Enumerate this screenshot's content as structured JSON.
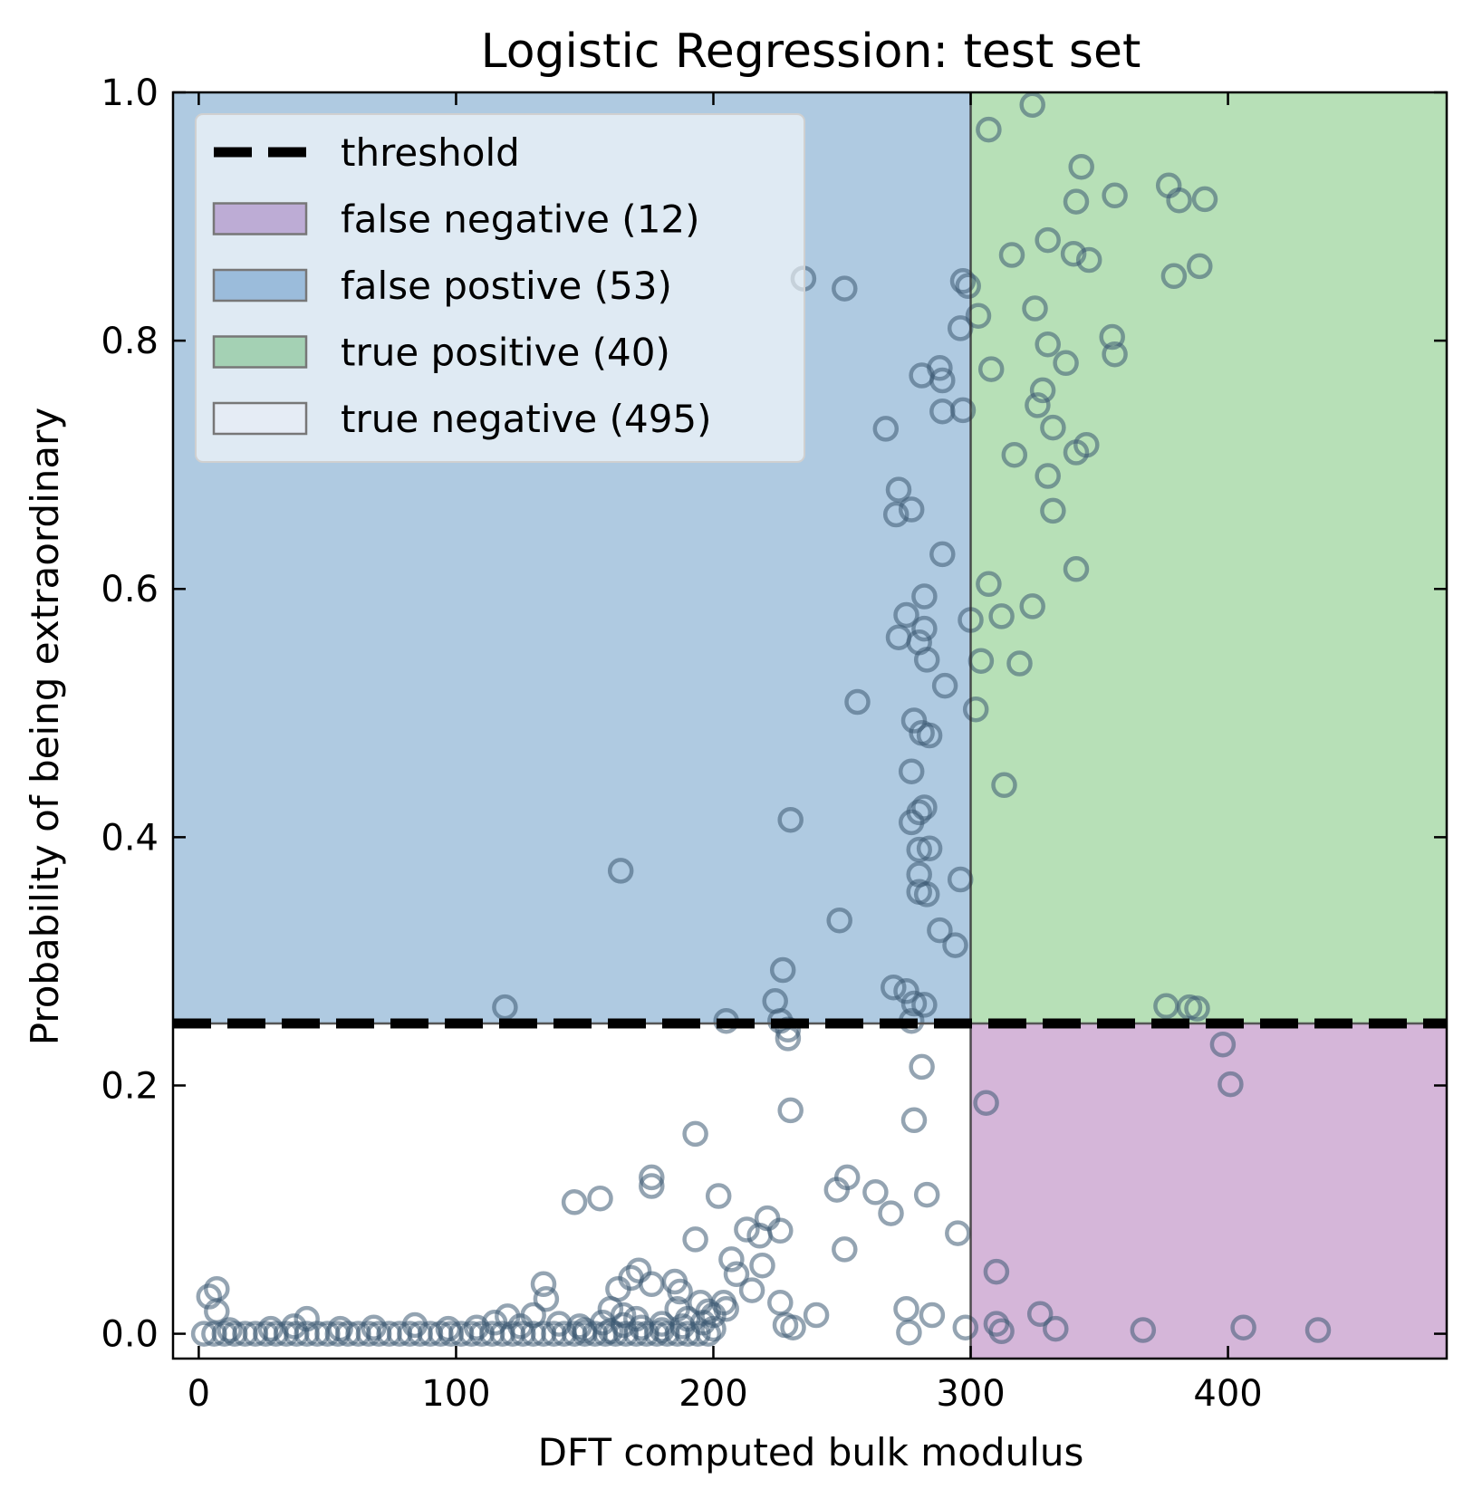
{
  "chart_data": {
    "type": "scatter",
    "title": "Logistic Regression: test set",
    "xlabel": "DFT computed bulk modulus",
    "ylabel": "Probability of being extraordinary",
    "xlim": [
      -10,
      485
    ],
    "ylim": [
      -0.02,
      1.0
    ],
    "x_ticks": [
      0,
      100,
      200,
      300,
      400
    ],
    "x_tick_labels": [
      "0",
      "100",
      "200",
      "300",
      "400"
    ],
    "y_ticks": [
      0.0,
      0.2,
      0.4,
      0.6,
      0.8,
      1.0
    ],
    "y_tick_labels": [
      "0.0",
      "0.2",
      "0.4",
      "0.6",
      "0.8",
      "1.0"
    ],
    "grid": false,
    "legend_position": "top-left",
    "threshold": {
      "x": 300,
      "y": 0.25
    },
    "colors": {
      "false_negative": "#d5b6d9",
      "false_positive": "#afcae1",
      "true_positive": "#b7e0b7",
      "true_negative": "#ffffff",
      "points": "#3d5a73",
      "threshold_line": "#000000"
    },
    "legend": [
      {
        "label": "threshold",
        "kind": "dashed-line",
        "color": "#000000"
      },
      {
        "label": "false negative (12)",
        "kind": "patch",
        "color": "#b7a1cf"
      },
      {
        "label": "false postive (53)",
        "kind": "patch",
        "color": "#8fb4d6"
      },
      {
        "label": "true positive (40)",
        "kind": "patch",
        "color": "#9acda8"
      },
      {
        "label": "true negative (495)",
        "kind": "patch",
        "color": "#e6ecf4"
      }
    ],
    "points": [
      [
        324,
        0.99
      ],
      [
        307,
        0.97
      ],
      [
        343,
        0.94
      ],
      [
        377,
        0.925
      ],
      [
        341,
        0.912
      ],
      [
        356,
        0.917
      ],
      [
        381,
        0.913
      ],
      [
        391,
        0.914
      ],
      [
        316,
        0.869
      ],
      [
        340,
        0.87
      ],
      [
        346,
        0.865
      ],
      [
        389,
        0.86
      ],
      [
        330,
        0.881
      ],
      [
        379,
        0.852
      ],
      [
        235,
        0.85
      ],
      [
        251,
        0.842
      ],
      [
        297,
        0.848
      ],
      [
        299,
        0.844
      ],
      [
        303,
        0.82
      ],
      [
        325,
        0.826
      ],
      [
        296,
        0.81
      ],
      [
        355,
        0.803
      ],
      [
        330,
        0.797
      ],
      [
        356,
        0.789
      ],
      [
        337,
        0.782
      ],
      [
        308,
        0.777
      ],
      [
        281,
        0.772
      ],
      [
        288,
        0.778
      ],
      [
        289,
        0.768
      ],
      [
        328,
        0.76
      ],
      [
        289,
        0.743
      ],
      [
        297,
        0.744
      ],
      [
        326,
        0.748
      ],
      [
        332,
        0.73
      ],
      [
        267,
        0.729
      ],
      [
        317,
        0.708
      ],
      [
        341,
        0.71
      ],
      [
        345,
        0.716
      ],
      [
        272,
        0.68
      ],
      [
        330,
        0.691
      ],
      [
        271,
        0.66
      ],
      [
        277,
        0.664
      ],
      [
        332,
        0.663
      ],
      [
        289,
        0.628
      ],
      [
        341,
        0.616
      ],
      [
        307,
        0.604
      ],
      [
        324,
        0.586
      ],
      [
        282,
        0.594
      ],
      [
        275,
        0.579
      ],
      [
        300,
        0.575
      ],
      [
        312,
        0.578
      ],
      [
        272,
        0.561
      ],
      [
        280,
        0.557
      ],
      [
        282,
        0.568
      ],
      [
        283,
        0.543
      ],
      [
        304,
        0.542
      ],
      [
        319,
        0.54
      ],
      [
        290,
        0.522
      ],
      [
        256,
        0.509
      ],
      [
        302,
        0.503
      ],
      [
        278,
        0.494
      ],
      [
        281,
        0.484
      ],
      [
        284,
        0.482
      ],
      [
        277,
        0.453
      ],
      [
        313,
        0.442
      ],
      [
        280,
        0.42
      ],
      [
        282,
        0.424
      ],
      [
        277,
        0.412
      ],
      [
        230,
        0.414
      ],
      [
        280,
        0.39
      ],
      [
        284,
        0.391
      ],
      [
        164,
        0.373
      ],
      [
        280,
        0.37
      ],
      [
        296,
        0.366
      ],
      [
        280,
        0.356
      ],
      [
        283,
        0.354
      ],
      [
        249,
        0.333
      ],
      [
        288,
        0.325
      ],
      [
        294,
        0.313
      ],
      [
        227,
        0.293
      ],
      [
        270,
        0.279
      ],
      [
        275,
        0.276
      ],
      [
        278,
        0.266
      ],
      [
        224,
        0.268
      ],
      [
        282,
        0.265
      ],
      [
        119,
        0.263
      ],
      [
        376,
        0.264
      ],
      [
        385,
        0.263
      ],
      [
        388,
        0.262
      ],
      [
        205,
        0.252
      ],
      [
        226,
        0.252
      ],
      [
        277,
        0.252
      ],
      [
        229,
        0.245
      ],
      [
        229,
        0.238
      ],
      [
        398,
        0.233
      ],
      [
        281,
        0.215
      ],
      [
        401,
        0.201
      ],
      [
        306,
        0.186
      ],
      [
        230,
        0.18
      ],
      [
        278,
        0.172
      ],
      [
        193,
        0.161
      ],
      [
        176,
        0.126
      ],
      [
        252,
        0.126
      ],
      [
        248,
        0.116
      ],
      [
        176,
        0.119
      ],
      [
        263,
        0.114
      ],
      [
        283,
        0.112
      ],
      [
        202,
        0.111
      ],
      [
        146,
        0.106
      ],
      [
        156,
        0.109
      ],
      [
        269,
        0.097
      ],
      [
        221,
        0.093
      ],
      [
        213,
        0.084
      ],
      [
        226,
        0.083
      ],
      [
        295,
        0.081
      ],
      [
        218,
        0.079
      ],
      [
        193,
        0.076
      ],
      [
        251,
        0.068
      ],
      [
        207,
        0.06
      ],
      [
        219,
        0.055
      ],
      [
        171,
        0.051
      ],
      [
        310,
        0.05
      ],
      [
        209,
        0.048
      ],
      [
        163,
        0.036
      ],
      [
        168,
        0.045
      ],
      [
        134,
        0.04
      ],
      [
        185,
        0.042
      ],
      [
        215,
        0.035
      ],
      [
        187,
        0.034
      ],
      [
        7,
        0.036
      ],
      [
        4,
        0.03
      ],
      [
        135,
        0.028
      ],
      [
        176,
        0.04
      ],
      [
        195,
        0.025
      ],
      [
        7,
        0.018
      ],
      [
        42,
        0.012
      ],
      [
        120,
        0.014
      ],
      [
        130,
        0.015
      ],
      [
        275,
        0.02
      ],
      [
        285,
        0.015
      ],
      [
        327,
        0.016
      ],
      [
        240,
        0.015
      ],
      [
        226,
        0.025
      ],
      [
        160,
        0.02
      ],
      [
        228,
        0.007
      ],
      [
        231,
        0.005
      ],
      [
        298,
        0.005
      ],
      [
        310,
        0.008
      ],
      [
        312,
        0.002
      ],
      [
        333,
        0.004
      ],
      [
        367,
        0.003
      ],
      [
        406,
        0.005
      ],
      [
        435,
        0.003
      ],
      [
        276,
        0.001
      ],
      [
        2,
        0.0
      ],
      [
        6,
        0.0
      ],
      [
        10,
        0.0
      ],
      [
        14,
        0.0
      ],
      [
        18,
        0.0
      ],
      [
        22,
        0.0
      ],
      [
        26,
        0.0
      ],
      [
        30,
        0.0
      ],
      [
        34,
        0.0
      ],
      [
        38,
        0.0
      ],
      [
        42,
        0.0
      ],
      [
        46,
        0.0
      ],
      [
        50,
        0.0
      ],
      [
        54,
        0.0
      ],
      [
        58,
        0.0
      ],
      [
        62,
        0.0
      ],
      [
        66,
        0.0
      ],
      [
        70,
        0.0
      ],
      [
        74,
        0.0
      ],
      [
        78,
        0.0
      ],
      [
        82,
        0.0
      ],
      [
        86,
        0.0
      ],
      [
        90,
        0.0
      ],
      [
        94,
        0.0
      ],
      [
        98,
        0.0
      ],
      [
        102,
        0.0
      ],
      [
        106,
        0.0
      ],
      [
        110,
        0.0
      ],
      [
        114,
        0.0
      ],
      [
        118,
        0.0
      ],
      [
        122,
        0.0
      ],
      [
        126,
        0.0
      ],
      [
        130,
        0.0
      ],
      [
        134,
        0.0
      ],
      [
        138,
        0.0
      ],
      [
        142,
        0.0
      ],
      [
        146,
        0.0
      ],
      [
        150,
        0.0
      ],
      [
        154,
        0.0
      ],
      [
        158,
        0.0
      ],
      [
        162,
        0.0
      ],
      [
        166,
        0.0
      ],
      [
        170,
        0.0
      ],
      [
        174,
        0.0
      ],
      [
        178,
        0.0
      ],
      [
        182,
        0.0
      ],
      [
        186,
        0.0
      ],
      [
        190,
        0.0
      ],
      [
        194,
        0.0
      ],
      [
        198,
        0.0
      ],
      [
        12,
        0.003
      ],
      [
        28,
        0.004
      ],
      [
        37,
        0.006
      ],
      [
        55,
        0.004
      ],
      [
        68,
        0.005
      ],
      [
        84,
        0.007
      ],
      [
        97,
        0.004
      ],
      [
        108,
        0.005
      ],
      [
        115,
        0.009
      ],
      [
        125,
        0.006
      ],
      [
        140,
        0.008
      ],
      [
        148,
        0.006
      ],
      [
        157,
        0.009
      ],
      [
        165,
        0.007
      ],
      [
        172,
        0.005
      ],
      [
        180,
        0.008
      ],
      [
        188,
        0.006
      ],
      [
        196,
        0.009
      ],
      [
        200,
        0.004
      ],
      [
        150,
        0.003
      ],
      [
        190,
        0.012
      ],
      [
        200,
        0.015
      ],
      [
        205,
        0.02
      ],
      [
        204,
        0.025
      ],
      [
        198,
        0.018
      ],
      [
        186,
        0.02
      ],
      [
        170,
        0.012
      ],
      [
        165,
        0.015
      ],
      [
        180,
        0.003
      ],
      [
        160,
        0.002
      ]
    ]
  }
}
